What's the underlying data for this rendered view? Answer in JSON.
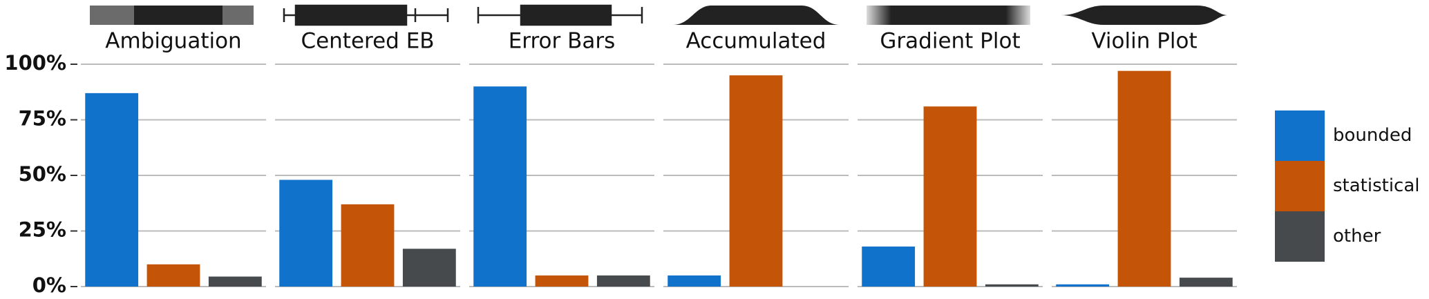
{
  "chart_data": {
    "type": "bar",
    "categories": [
      "Ambiguation",
      "Centered EB",
      "Error Bars",
      "Accumulated",
      "Gradient Plot",
      "Violin Plot"
    ],
    "series": [
      {
        "name": "bounded",
        "color": "#1172cc",
        "values": [
          87,
          48,
          90,
          5,
          18,
          1
        ]
      },
      {
        "name": "statistical",
        "color": "#c45508",
        "values": [
          10,
          37,
          5,
          95,
          81,
          97
        ]
      },
      {
        "name": "other",
        "color": "#474a4c",
        "values": [
          4.5,
          17,
          5,
          0,
          1,
          4
        ]
      }
    ],
    "ylim": [
      0,
      100
    ],
    "yticks": [
      {
        "value": 0,
        "label": "0%"
      },
      {
        "value": 25,
        "label": "25%"
      },
      {
        "value": 50,
        "label": "50%"
      },
      {
        "value": 75,
        "label": "75%"
      },
      {
        "value": 100,
        "label": "100%"
      }
    ],
    "grid": true,
    "legend": "right"
  }
}
